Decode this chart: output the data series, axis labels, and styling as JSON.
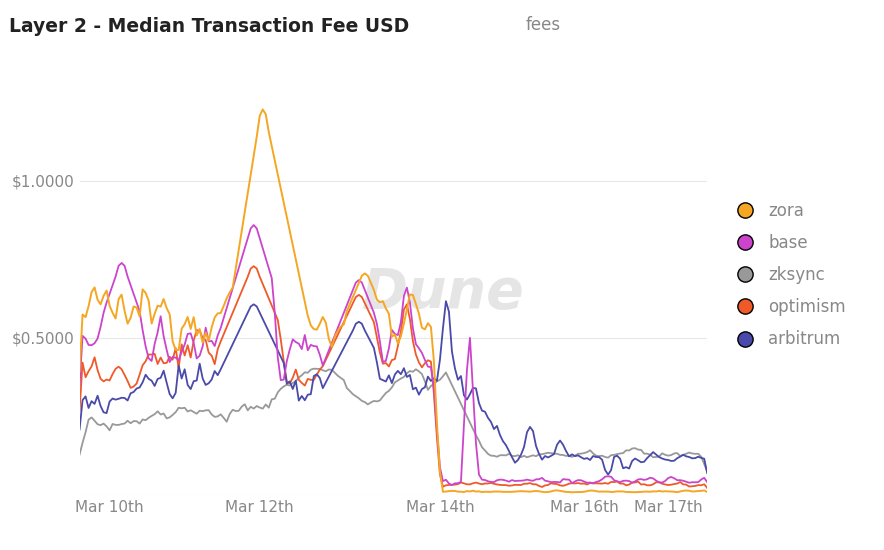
{
  "title": "Layer 2 - Median Transaction Fee USD",
  "subtitle": "fees",
  "background_color": "#ffffff",
  "plot_bg_color": "#ffffff",
  "watermark": "Dune",
  "series": {
    "zora": {
      "color": "#f5a623"
    },
    "base": {
      "color": "#cc44cc"
    },
    "zksync": {
      "color": "#999999"
    },
    "optimism": {
      "color": "#f05a28"
    },
    "arbitrum": {
      "color": "#4a4aaa"
    }
  },
  "legend_order": [
    "zora",
    "base",
    "zksync",
    "optimism",
    "arbitrum"
  ],
  "ylim": [
    0,
    1.4
  ],
  "grid_color": "#e8e8e8",
  "tick_color": "#888888",
  "title_color": "#222222",
  "label_color": "#888888"
}
